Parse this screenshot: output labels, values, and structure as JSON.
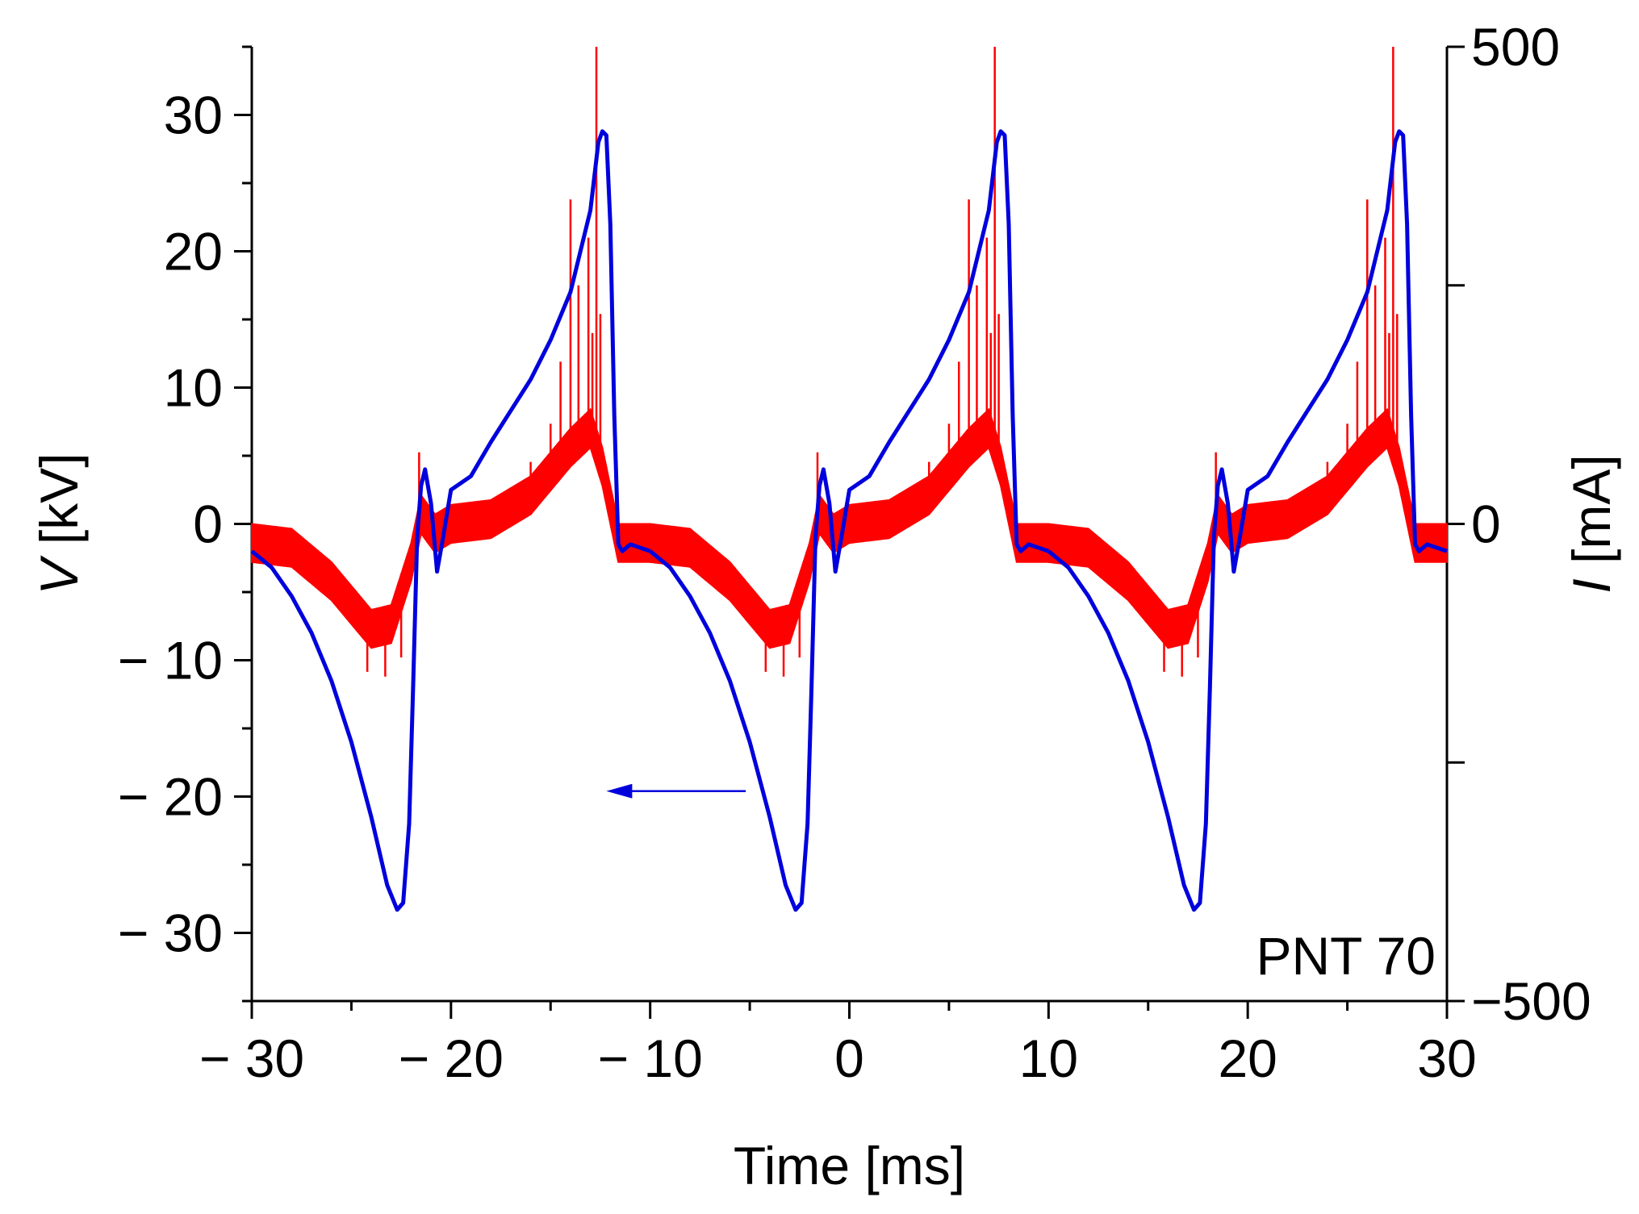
{
  "chart_data": {
    "type": "line",
    "title": "",
    "annotation": "PNT 70",
    "xlabel": "Time [ms]",
    "ylabel_left": {
      "symbol": "V",
      "unit": " [kV]"
    },
    "ylabel_right": {
      "symbol": "I",
      "unit": " [mA]"
    },
    "xlim": [
      -30,
      30
    ],
    "ylim_left": [
      -35,
      35
    ],
    "ylim_right": [
      -500,
      500
    ],
    "x_ticks": [
      -30,
      -20,
      -10,
      0,
      10,
      20,
      30
    ],
    "x_tick_labels": [
      "− 30",
      "− 20",
      "− 10",
      "0",
      "10",
      "20",
      "30"
    ],
    "y_left_ticks": [
      -30,
      -20,
      -10,
      0,
      10,
      20,
      30
    ],
    "y_left_tick_labels": [
      "− 30",
      "− 20",
      "− 10",
      "0",
      "10",
      "20",
      "30"
    ],
    "y_right_ticks": [
      -500,
      0,
      500
    ],
    "y_right_tick_labels": [
      "−500",
      "0",
      "500"
    ],
    "arrow": {
      "from_x": -5.2,
      "to_x": -12.2,
      "y": -19.6,
      "points_to": "left axis",
      "series": "Voltage"
    },
    "series": [
      {
        "name": "Voltage",
        "axis": "left",
        "unit": "kV",
        "color": "#0000dd",
        "period_ms": 20,
        "cycle_points": [
          {
            "t": -30.0,
            "v": -2.0
          },
          {
            "t": -29.0,
            "v": -3.2
          },
          {
            "t": -28.0,
            "v": -5.3
          },
          {
            "t": -27.0,
            "v": -8.0
          },
          {
            "t": -26.0,
            "v": -11.5
          },
          {
            "t": -25.0,
            "v": -16.0
          },
          {
            "t": -24.0,
            "v": -21.5
          },
          {
            "t": -23.2,
            "v": -26.5
          },
          {
            "t": -22.7,
            "v": -28.3
          },
          {
            "t": -22.4,
            "v": -27.8
          },
          {
            "t": -22.1,
            "v": -22.0
          },
          {
            "t": -21.9,
            "v": -12.0
          },
          {
            "t": -21.7,
            "v": -1.0
          },
          {
            "t": -21.5,
            "v": 2.8
          },
          {
            "t": -21.3,
            "v": 4.0
          },
          {
            "t": -21.0,
            "v": 1.5
          },
          {
            "t": -20.7,
            "v": -3.5
          },
          {
            "t": -20.4,
            "v": -1.0
          },
          {
            "t": -20.0,
            "v": 2.5
          },
          {
            "t": -19.0,
            "v": 3.5
          },
          {
            "t": -18.0,
            "v": 6.0
          },
          {
            "t": -17.0,
            "v": 8.3
          },
          {
            "t": -16.0,
            "v": 10.6
          },
          {
            "t": -15.0,
            "v": 13.5
          },
          {
            "t": -14.0,
            "v": 17.0
          },
          {
            "t": -13.0,
            "v": 23.0
          },
          {
            "t": -12.6,
            "v": 28.0
          },
          {
            "t": -12.4,
            "v": 28.8
          },
          {
            "t": -12.2,
            "v": 28.5
          },
          {
            "t": -12.0,
            "v": 22.0
          },
          {
            "t": -11.8,
            "v": 8.0
          },
          {
            "t": -11.6,
            "v": -1.5
          },
          {
            "t": -11.4,
            "v": -2.0
          },
          {
            "t": -11.0,
            "v": -1.5
          },
          {
            "t": -10.0,
            "v": -2.0
          }
        ]
      },
      {
        "name": "Current",
        "axis": "right",
        "unit": "mA",
        "color": "#ff0000",
        "period_ms": 20,
        "band_width_mA": 40,
        "cycle_points": [
          {
            "t": -30.0,
            "i": -20
          },
          {
            "t": -28.0,
            "i": -25
          },
          {
            "t": -26.0,
            "i": -60
          },
          {
            "t": -24.0,
            "i": -110
          },
          {
            "t": -23.0,
            "i": -105
          },
          {
            "t": -22.0,
            "i": -40
          },
          {
            "t": -21.5,
            "i": 10
          },
          {
            "t": -20.8,
            "i": -10
          },
          {
            "t": -20.0,
            "i": 0
          },
          {
            "t": -18.0,
            "i": 5
          },
          {
            "t": -16.0,
            "i": 30
          },
          {
            "t": -14.0,
            "i": 80
          },
          {
            "t": -13.0,
            "i": 100
          },
          {
            "t": -12.4,
            "i": 60
          },
          {
            "t": -11.6,
            "i": -20
          },
          {
            "t": -10.0,
            "i": -20
          }
        ],
        "spikes": [
          {
            "t": -24.2,
            "i": -155
          },
          {
            "t": -23.3,
            "i": -160
          },
          {
            "t": -22.5,
            "i": -140
          },
          {
            "t": -21.6,
            "i": 75
          },
          {
            "t": -18.2,
            "i": 25
          },
          {
            "t": -16.0,
            "i": 65
          },
          {
            "t": -15.0,
            "i": 105
          },
          {
            "t": -14.5,
            "i": 170
          },
          {
            "t": -14.0,
            "i": 340
          },
          {
            "t": -13.6,
            "i": 250
          },
          {
            "t": -13.1,
            "i": 300
          },
          {
            "t": -12.9,
            "i": 200
          },
          {
            "t": -12.7,
            "i": 500
          },
          {
            "t": -12.5,
            "i": 220
          }
        ]
      }
    ]
  }
}
